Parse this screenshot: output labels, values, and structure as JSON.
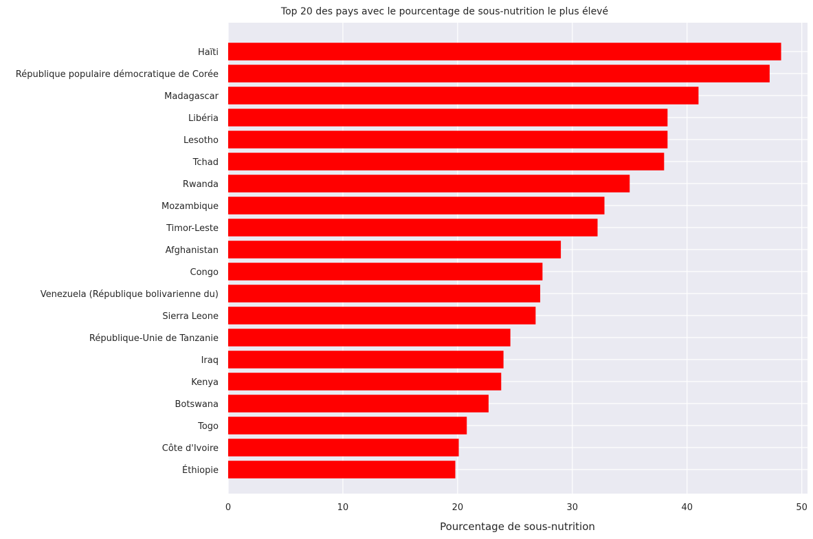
{
  "chart_data": {
    "type": "bar",
    "orientation": "horizontal",
    "title": "Top 20 des pays avec le pourcentage de sous-nutrition le plus élevé",
    "xlabel": "Pourcentage de sous-nutrition",
    "ylabel": "",
    "xlim": [
      0,
      50.5
    ],
    "xticks": [
      "0",
      "10",
      "20",
      "30",
      "40",
      "50"
    ],
    "grid": true,
    "legend": "none",
    "colors": {
      "bar": "#ff0000",
      "plot_background": "#eaeaf2",
      "grid": "#ffffff"
    },
    "categories": [
      "Haïti",
      "République populaire démocratique de Corée",
      "Madagascar",
      "Libéria",
      "Lesotho",
      "Tchad",
      "Rwanda",
      "Mozambique",
      "Timor-Leste",
      "Afghanistan",
      "Congo",
      "Venezuela (République bolivarienne du)",
      "Sierra Leone",
      "République-Unie de Tanzanie",
      "Iraq",
      "Kenya",
      "Botswana",
      "Togo",
      "Côte d'Ivoire",
      "Éthiopie"
    ],
    "values": [
      48.2,
      47.2,
      41.0,
      38.3,
      38.3,
      38.0,
      35.0,
      32.8,
      32.2,
      29.0,
      27.4,
      27.2,
      26.8,
      24.6,
      24.0,
      23.8,
      22.7,
      20.8,
      20.1,
      19.8
    ]
  }
}
